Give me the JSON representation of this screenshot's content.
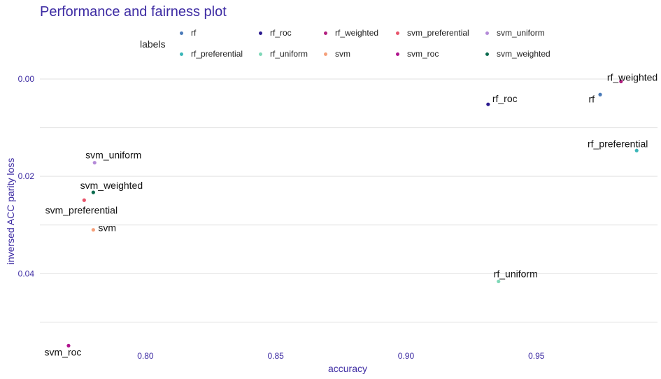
{
  "chart_data": {
    "type": "scatter",
    "title": "Performance and fairness plot",
    "xlabel": "accuracy",
    "ylabel": "inversed ACC parity loss",
    "xlim": [
      0.7595,
      0.9965
    ],
    "ylim": [
      0.0,
      0.0549
    ],
    "y_reversed": true,
    "grid": "horizontal",
    "legend_title": "labels",
    "legend_position": "top",
    "x_ticks": [
      "0.80",
      "0.85",
      "0.90",
      "0.95"
    ],
    "x_tick_values": [
      0.8,
      0.85,
      0.9,
      0.95
    ],
    "y_ticks": [
      "0.00",
      "0.02",
      "0.04"
    ],
    "y_tick_values": [
      0.0,
      0.02,
      0.04
    ],
    "series": [
      {
        "name": "rf",
        "color": "#4a7ab8",
        "x": 0.9745,
        "y": 0.0032
      },
      {
        "name": "rf_roc",
        "color": "#2b1a8f",
        "x": 0.9315,
        "y": 0.0052
      },
      {
        "name": "rf_weighted",
        "color": "#b21f80",
        "x": 0.9825,
        "y": 0.0005
      },
      {
        "name": "svm_preferential",
        "color": "#e8546b",
        "x": 0.7765,
        "y": 0.0249
      },
      {
        "name": "svm_uniform",
        "color": "#b48ad8",
        "x": 0.7805,
        "y": 0.0172
      },
      {
        "name": "rf_preferential",
        "color": "#3ab6b8",
        "x": 0.9885,
        "y": 0.0147
      },
      {
        "name": "rf_uniform",
        "color": "#7fd8b8",
        "x": 0.9355,
        "y": 0.0416
      },
      {
        "name": "svm",
        "color": "#f5a07a",
        "x": 0.78,
        "y": 0.031
      },
      {
        "name": "svm_roc",
        "color": "#b0158e",
        "x": 0.7705,
        "y": 0.0548
      },
      {
        "name": "svm_weighted",
        "color": "#0b6b4e",
        "x": 0.78,
        "y": 0.0233
      }
    ]
  }
}
